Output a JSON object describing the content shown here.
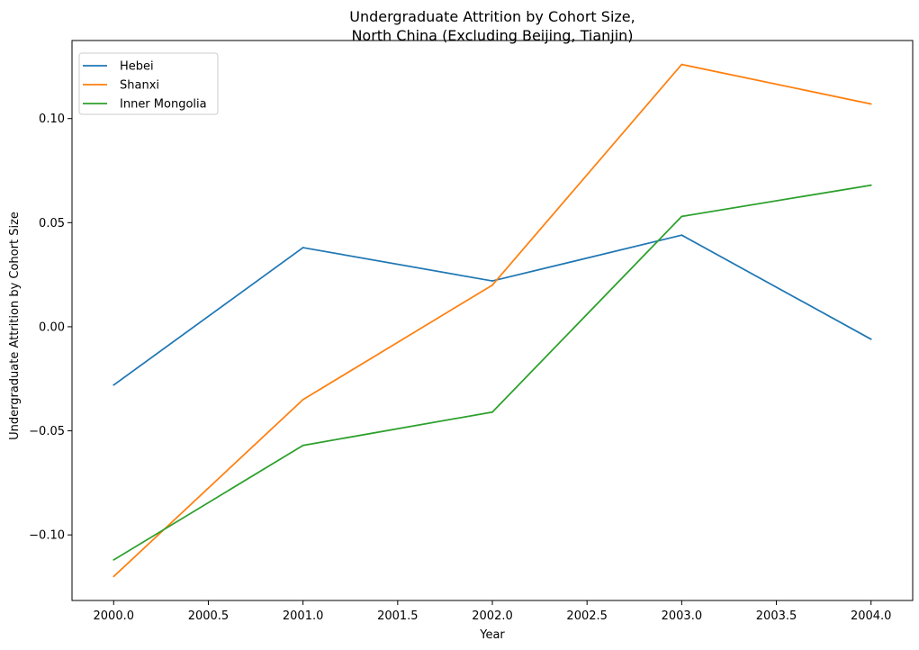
{
  "chart_data": {
    "type": "line",
    "title_lines": [
      "Undergraduate Attrition by Cohort Size,",
      "North China (Excluding Beijing, Tianjin)"
    ],
    "xlabel": "Year",
    "ylabel": "Undergraduate Attrition by Cohort Size",
    "x": [
      2000,
      2001,
      2002,
      2003,
      2004
    ],
    "xlim": [
      1999.78,
      2004.22
    ],
    "ylim": [
      -0.1315,
      0.1375
    ],
    "x_ticks": [
      2000.0,
      2000.5,
      2001.0,
      2001.5,
      2002.0,
      2002.5,
      2003.0,
      2003.5,
      2004.0
    ],
    "x_tick_labels": [
      "2000.0",
      "2000.5",
      "2001.0",
      "2001.5",
      "2002.0",
      "2002.5",
      "2003.0",
      "2003.5",
      "2004.0"
    ],
    "y_ticks": [
      -0.1,
      -0.05,
      0.0,
      0.05,
      0.1
    ],
    "y_tick_labels": [
      "−0.10",
      "−0.05",
      "0.00",
      "0.05",
      "0.10"
    ],
    "grid": false,
    "legend_position": "top-left",
    "series": [
      {
        "name": "Hebei",
        "color": "#1f77b4",
        "values": [
          -0.028,
          0.038,
          0.022,
          0.044,
          -0.006
        ]
      },
      {
        "name": "Shanxi",
        "color": "#ff7f0e",
        "values": [
          -0.12,
          -0.035,
          0.02,
          0.126,
          0.107
        ]
      },
      {
        "name": "Inner Mongolia",
        "color": "#2ca02c",
        "values": [
          -0.112,
          -0.057,
          -0.041,
          0.053,
          0.068
        ]
      }
    ]
  }
}
